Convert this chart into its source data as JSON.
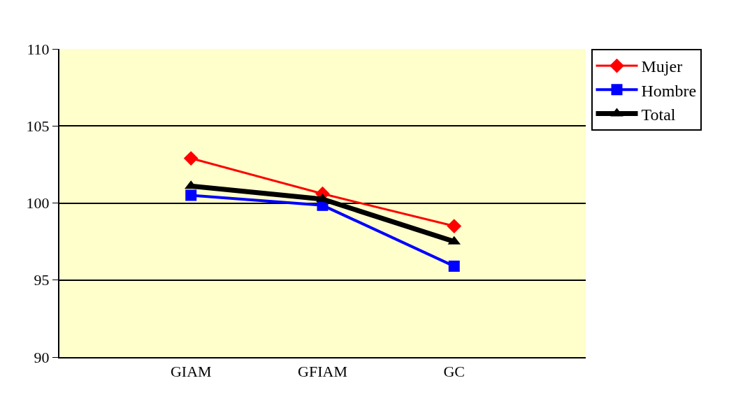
{
  "chart_data": {
    "type": "line",
    "categories": [
      "GIAM",
      "GFIAM",
      "GC"
    ],
    "series": [
      {
        "name": "Mujer",
        "color": "#ff0000",
        "values": [
          102.9,
          100.6,
          98.5
        ],
        "marker": "diamond"
      },
      {
        "name": "Hombre",
        "color": "#0000ff",
        "values": [
          100.5,
          99.85,
          95.9
        ],
        "marker": "square"
      },
      {
        "name": "Total",
        "color": "#000000",
        "values": [
          101.1,
          100.25,
          97.5
        ],
        "marker": "triangle"
      }
    ],
    "ylim": [
      90,
      110
    ],
    "yticks": [
      90,
      95,
      100,
      105,
      110
    ],
    "grid": "y",
    "legend": "top right",
    "line_style": "solid"
  }
}
